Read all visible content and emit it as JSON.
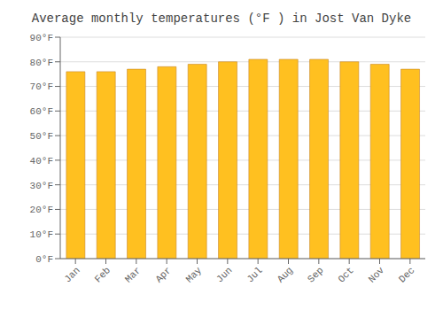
{
  "chart_data": {
    "type": "bar",
    "title": "Average monthly temperatures (°F ) in Jost Van Dyke",
    "categories": [
      "Jan",
      "Feb",
      "Mar",
      "Apr",
      "May",
      "Jun",
      "Jul",
      "Aug",
      "Sep",
      "Oct",
      "Nov",
      "Dec"
    ],
    "values": [
      76,
      76,
      77,
      78,
      79,
      80,
      81,
      81,
      81,
      80,
      79,
      77
    ],
    "color": "#FFC020",
    "ylim": [
      0,
      90
    ],
    "yticks": [
      {
        "value": 0,
        "label": "0°F"
      },
      {
        "value": 10,
        "label": "10°F"
      },
      {
        "value": 20,
        "label": "20°F"
      },
      {
        "value": 30,
        "label": "30°F"
      },
      {
        "value": 40,
        "label": "40°F"
      },
      {
        "value": 50,
        "label": "50°F"
      },
      {
        "value": 60,
        "label": "60°F"
      },
      {
        "value": 70,
        "label": "70°F"
      },
      {
        "value": 80,
        "label": "80°F"
      },
      {
        "value": 90,
        "label": "90°F"
      }
    ],
    "grid": true
  }
}
